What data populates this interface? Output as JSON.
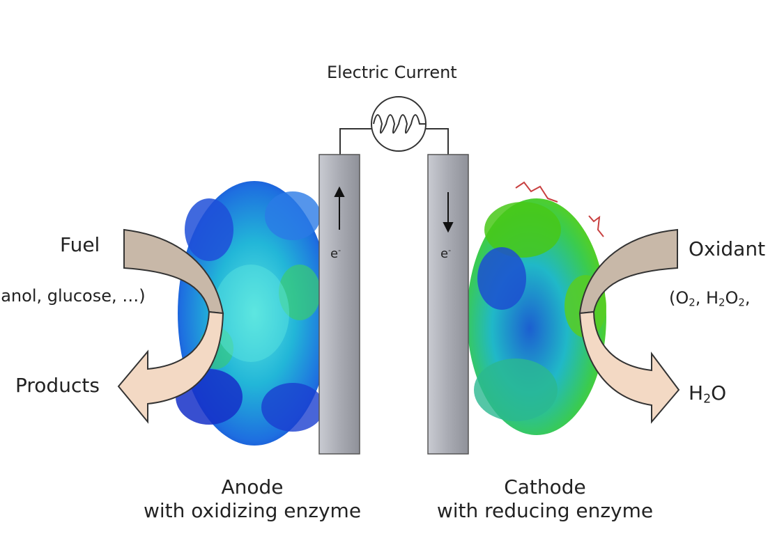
{
  "labels": {
    "current": "Electric Current",
    "fuel": "Fuel",
    "fuel_examples": "hanol, glucose, …)",
    "products": "Products",
    "oxidant": "Oxidant",
    "oxidant_ex_open": "(O",
    "oxidant_ex_sub1": "2",
    "oxidant_ex_mid": ", H",
    "oxidant_ex_sub2": "2",
    "oxidant_ex_o": "O",
    "oxidant_ex_sub3": "2",
    "oxidant_ex_end": ",",
    "water_h": "H",
    "water_sub": "2",
    "water_o": "O",
    "electron": "e",
    "electron_charge": "-",
    "anode_line1": "Anode",
    "anode_line2": "with oxidizing enzyme",
    "cathode_line1": "Cathode",
    "cathode_line2": "with reducing enzyme"
  },
  "colors": {
    "electrode": "#a9abb3",
    "arrow_fuel": "#c8b8a8",
    "arrow_products": "#f3d9c4",
    "enzyme_anode": [
      "#1530c8",
      "#1e6fe0",
      "#22c6d8",
      "#3acb70"
    ],
    "enzyme_cathode": [
      "#48c818",
      "#22b060",
      "#1c5fd0",
      "#20b8c8"
    ]
  }
}
